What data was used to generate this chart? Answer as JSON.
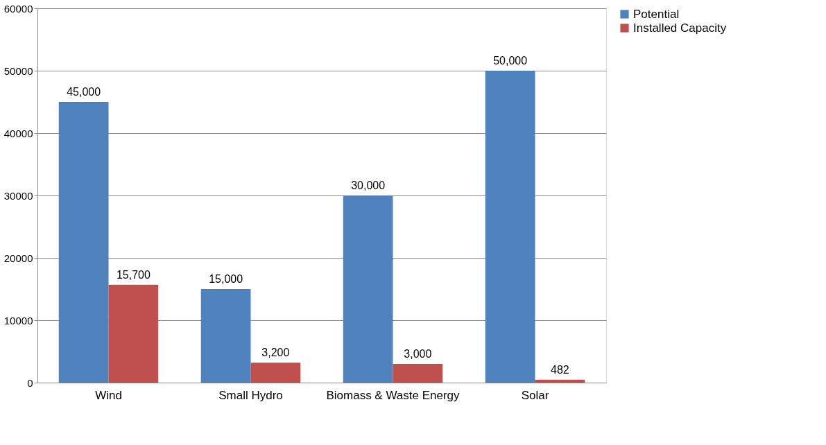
{
  "chart_data": {
    "type": "bar",
    "categories": [
      "Wind",
      "Small Hydro",
      "Biomass & Waste Energy",
      "Solar"
    ],
    "series": [
      {
        "name": "Potential",
        "color": "#4f81bd",
        "values": [
          45000,
          15000,
          30000,
          50000
        ],
        "value_labels": [
          "45,000",
          "15,000",
          "30,000",
          "50,000"
        ]
      },
      {
        "name": "Installed Capacity",
        "color": "#c0504d",
        "values": [
          15700,
          3200,
          3000,
          482
        ],
        "value_labels": [
          "15,700",
          "3,200",
          "3,000",
          "482"
        ]
      }
    ],
    "ylim": [
      0,
      60000
    ],
    "yticks": [
      0,
      10000,
      20000,
      30000,
      40000,
      50000,
      60000
    ],
    "grid": "y",
    "legend": "right"
  }
}
